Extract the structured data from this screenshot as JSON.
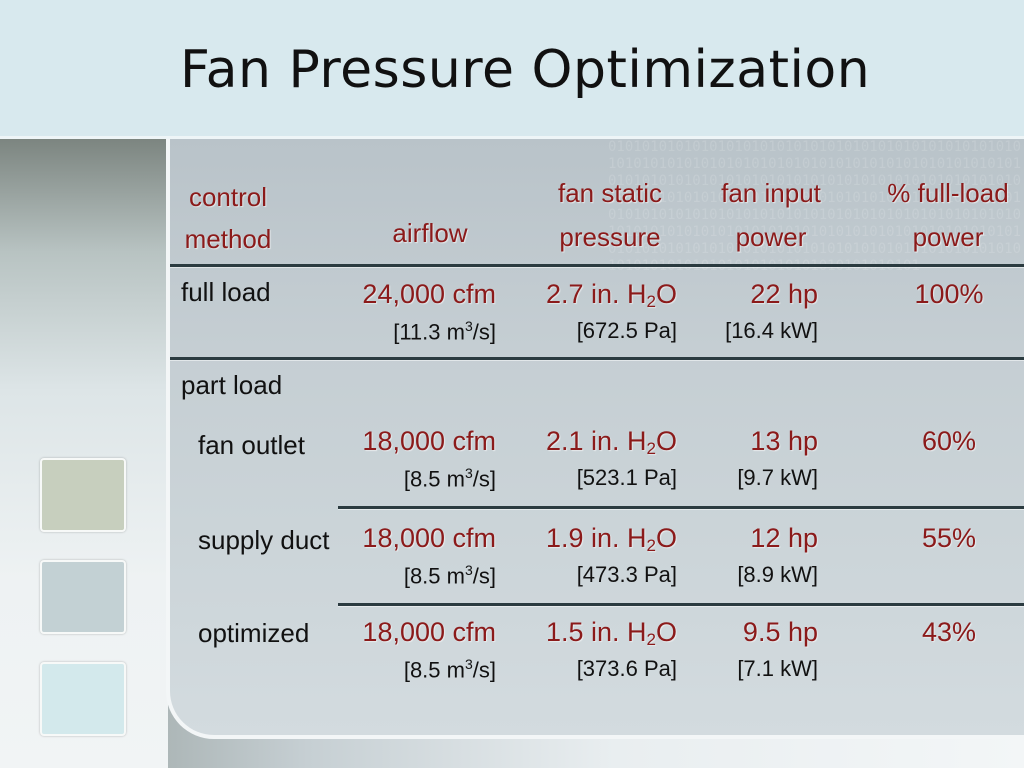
{
  "title": "Fan Pressure Optimization",
  "binary_pattern": "01010101010101010101010101010101010101010101010101010101010101010101010101010101010101010101010101010101010101010101010101010101010101010101010101010101010101010101010101010101010101010101010101010101010101010101010101010101010101010101010101010101010101010101010101010101010101010101010101010101010101010101010101010101010101010101010101010101010101010101010101010101010101010101",
  "columns": {
    "control_method": [
      "control",
      "method"
    ],
    "airflow": "airflow",
    "fan_static_pressure": [
      "fan static",
      "pressure"
    ],
    "fan_input_power": [
      "fan input",
      "power"
    ],
    "full_load_power": [
      "% full-load",
      "power"
    ]
  },
  "section_part_load": "part load",
  "rows": [
    {
      "label": "full load",
      "airflow": "24,000 cfm",
      "airflow_si": "[11.3 m",
      "airflow_si_unit": "/s]",
      "pressure": "2.7 in. H",
      "pressure_si": "[672.5 Pa]",
      "power": "22 hp",
      "power_si": "[16.4 kW]",
      "pct": "100%"
    },
    {
      "label": "fan outlet",
      "airflow": "18,000 cfm",
      "airflow_si": "[8.5 m",
      "airflow_si_unit": "/s]",
      "pressure": "2.1 in. H",
      "pressure_si": "[523.1 Pa]",
      "power": "13 hp",
      "power_si": "[9.7 kW]",
      "pct": "60%"
    },
    {
      "label": "supply duct",
      "airflow": "18,000 cfm",
      "airflow_si": "[8.5 m",
      "airflow_si_unit": "/s]",
      "pressure": "1.9 in. H",
      "pressure_si": "[473.3 Pa]",
      "power": "12 hp",
      "power_si": "[8.9 kW]",
      "pct": "55%"
    },
    {
      "label": "optimized",
      "airflow": "18,000 cfm",
      "airflow_si": "[8.5 m",
      "airflow_si_unit": "/s]",
      "pressure": "1.5 in. H",
      "pressure_si": "[373.6 Pa]",
      "power": "9.5 hp",
      "power_si": "[7.1 kW]",
      "pct": "43%"
    }
  ],
  "colors": {
    "accent_red": "#8b1a1a",
    "header_bg": "#d8e9ee",
    "panel_bg": "#c5ced3",
    "rule": "#2b3b40"
  }
}
